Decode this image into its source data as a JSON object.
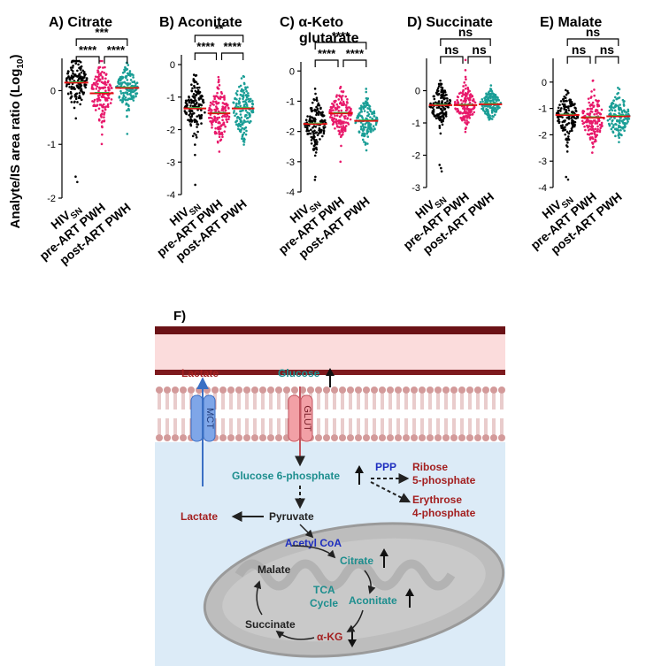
{
  "shared_ylabel": "Analyte/IS area ratio (Log",
  "shared_ylabel_sub": "10",
  "shared_ylabel_end": ")",
  "group_colors": {
    "HIVSN": "#000000",
    "pre-ART PWH": "#e8196b",
    "post-ART PWH": "#1a9e96"
  },
  "mean_line_color": "#e01010",
  "median_line_color": "#3cb043",
  "chart_data": [
    {
      "panel": "A)",
      "type": "scatter",
      "title": "Citrate",
      "categories": [
        "HIV",
        "pre-ART PWH",
        "post-ART PWH"
      ],
      "category_sub": [
        "SN",
        "",
        ""
      ],
      "ylim": [
        -2,
        0.6
      ],
      "yticks": [
        -2,
        -1,
        0
      ],
      "series": [
        {
          "center": 0.15,
          "spread": 0.25,
          "outliers": [
            -1.6,
            -1.7
          ]
        },
        {
          "center": -0.05,
          "spread": 0.27,
          "outliers": []
        },
        {
          "center": 0.05,
          "spread": 0.2,
          "outliers": []
        }
      ],
      "significance": [
        {
          "from": 0,
          "to": 2,
          "label": "***"
        },
        {
          "from": 0,
          "to": 1,
          "label": "****"
        },
        {
          "from": 1,
          "to": 2,
          "label": "****"
        }
      ]
    },
    {
      "panel": "B)",
      "type": "scatter",
      "title": "Aconitate",
      "categories": [
        "HIV",
        "pre-ART PWH",
        "post-ART PWH"
      ],
      "category_sub": [
        "SN",
        "",
        ""
      ],
      "ylim": [
        -4,
        0.3
      ],
      "yticks": [
        -4,
        -3,
        -2,
        -1,
        0
      ],
      "series": [
        {
          "center": -1.35,
          "spread": 0.45,
          "outliers": [
            -3.7
          ]
        },
        {
          "center": -1.5,
          "spread": 0.45,
          "outliers": []
        },
        {
          "center": -1.35,
          "spread": 0.45,
          "outliers": []
        }
      ],
      "significance": [
        {
          "from": 0,
          "to": 2,
          "label": "**"
        },
        {
          "from": 0,
          "to": 1,
          "label": "****"
        },
        {
          "from": 1,
          "to": 2,
          "label": "****"
        }
      ]
    },
    {
      "panel": "C)",
      "type": "scatter",
      "title": "α-Keto",
      "title_line2": "glutarate",
      "categories": [
        "HIV",
        "pre-ART PWH",
        "post-ART PWH"
      ],
      "category_sub": [
        "SN",
        "",
        ""
      ],
      "ylim": [
        -4,
        0.3
      ],
      "yticks": [
        -4,
        -3,
        -2,
        -1,
        0
      ],
      "series": [
        {
          "center": -1.75,
          "spread": 0.4,
          "outliers": [
            -3.5,
            -3.6
          ]
        },
        {
          "center": -1.4,
          "spread": 0.4,
          "outliers": [
            -3.0
          ]
        },
        {
          "center": -1.65,
          "spread": 0.35,
          "outliers": []
        }
      ],
      "significance": [
        {
          "from": 0,
          "to": 2,
          "label": "****"
        },
        {
          "from": 0,
          "to": 1,
          "label": "****"
        },
        {
          "from": 1,
          "to": 2,
          "label": "****"
        }
      ]
    },
    {
      "panel": "D)",
      "type": "scatter",
      "title": "Succinate",
      "categories": [
        "HIV",
        "pre-ART PWH",
        "post-ART PWH"
      ],
      "category_sub": [
        "SN",
        "",
        ""
      ],
      "ylim": [
        -3,
        1.0
      ],
      "yticks": [
        -3,
        -2,
        -1,
        0
      ],
      "series": [
        {
          "center": -0.45,
          "spread": 0.3,
          "outliers": [
            -2.3,
            -2.4,
            -2.5
          ]
        },
        {
          "center": -0.45,
          "spread": 0.3,
          "outliers": []
        },
        {
          "center": -0.42,
          "spread": 0.22,
          "outliers": []
        }
      ],
      "significance": [
        {
          "from": 0,
          "to": 2,
          "label": "ns"
        },
        {
          "from": 0,
          "to": 1,
          "label": "ns"
        },
        {
          "from": 1,
          "to": 2,
          "label": "ns"
        }
      ]
    },
    {
      "panel": "E)",
      "type": "scatter",
      "title": "Malate",
      "categories": [
        "HIV",
        "pre-ART PWH",
        "post-ART PWH"
      ],
      "category_sub": [
        "SN",
        "",
        ""
      ],
      "ylim": [
        -4,
        0.9
      ],
      "yticks": [
        -4,
        -3,
        -2,
        -1,
        0
      ],
      "series": [
        {
          "center": -1.25,
          "spread": 0.45,
          "outliers": [
            -3.6,
            -3.7
          ]
        },
        {
          "center": -1.35,
          "spread": 0.5,
          "outliers": []
        },
        {
          "center": -1.3,
          "spread": 0.45,
          "outliers": []
        }
      ],
      "significance": [
        {
          "from": 0,
          "to": 2,
          "label": "ns"
        },
        {
          "from": 0,
          "to": 1,
          "label": "ns"
        },
        {
          "from": 1,
          "to": 2,
          "label": "ns"
        }
      ]
    }
  ],
  "pathway": {
    "panel_label": "F)",
    "lactate_out": "Lactate",
    "glucose_out": "Glucose",
    "mct": "MCT",
    "glut": "GLUT",
    "g6p": "Glucose 6-phosphate",
    "ppp": "PPP",
    "ribose": "Ribose",
    "ribose2": "5-phosphate",
    "erythrose": "Erythrose",
    "erythrose2": "4-phosphate",
    "lactate_in": "Lactate",
    "pyruvate": "Pyruvate",
    "acetyl_coa": "Acetyl CoA",
    "citrate": "Citrate",
    "aconitate": "Aconitate",
    "akg": "α-KG",
    "succinate": "Succinate",
    "malate": "Malate",
    "tca": "TCA",
    "cycle": "Cycle",
    "colors": {
      "teal": "#1d8e8e",
      "red": "#a31f1f",
      "blue": "#1f2fbf",
      "dark": "#222222",
      "membrane_dark": "#6b1216",
      "extracellular": "#fbdcdc",
      "cytoplasm": "#dcebf7",
      "mito": "#b9b9b9"
    }
  }
}
